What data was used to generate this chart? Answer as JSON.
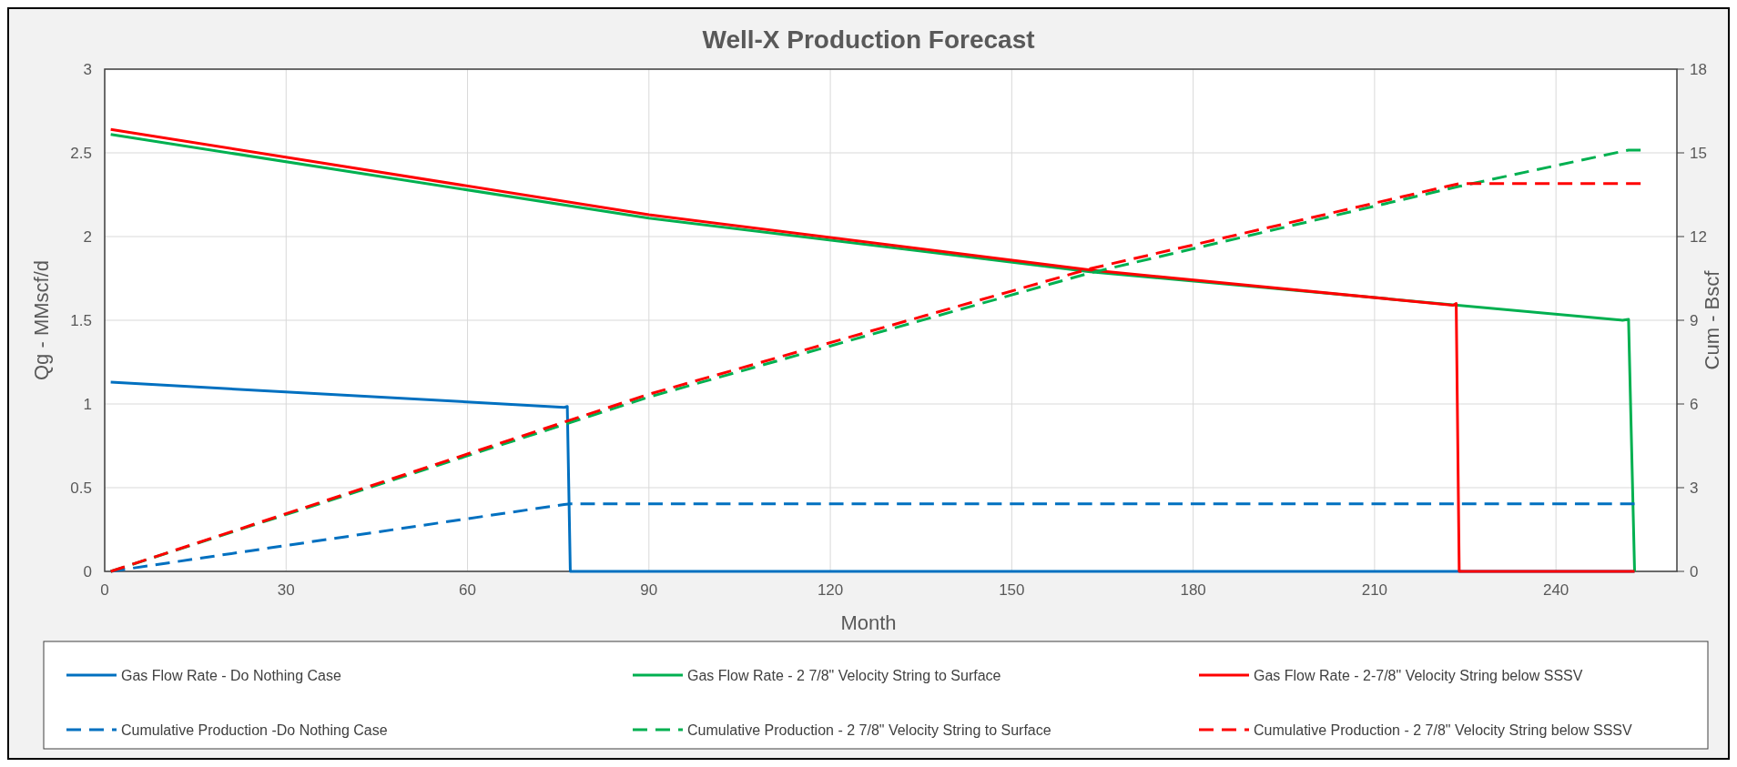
{
  "chart_data": {
    "type": "line",
    "title": "Well-X Production Forecast",
    "xlabel": "Month",
    "ylabel": "Qg - MMscf/d",
    "y2label": "Cum - Bscf",
    "xlim": [
      0,
      260
    ],
    "xticks": [
      0,
      30,
      60,
      90,
      120,
      150,
      180,
      210,
      240
    ],
    "ylim": [
      0,
      3
    ],
    "yticks": [
      0,
      0.5,
      1,
      1.5,
      2,
      2.5,
      3
    ],
    "y2lim": [
      0,
      18
    ],
    "y2ticks": [
      0,
      3,
      6,
      9,
      12,
      15,
      18
    ],
    "grid": true,
    "legend": "bottom",
    "marker": "none",
    "series": [
      {
        "name": "Gas Flow Rate - Do Nothing Case",
        "color": "#0070c0",
        "line_style": "solid",
        "x": [
          1,
          76,
          76.5,
          77,
          253
        ],
        "values": [
          1.13,
          0.98,
          0.985,
          0,
          0
        ]
      },
      {
        "name": "Gas Flow Rate - 2 7/8\" Velocity String to Surface",
        "color": "#00b050",
        "line_style": "solid",
        "x": [
          1,
          90,
          163,
          251,
          252,
          253
        ],
        "values": [
          2.61,
          2.11,
          1.79,
          1.5,
          1.505,
          0
        ]
      },
      {
        "name": "Gas Flow Rate - 2-7/8\" Velocity String below SSSV",
        "color": "#ff0000",
        "line_style": "solid",
        "x": [
          1,
          90,
          163,
          223,
          223.5,
          224,
          253
        ],
        "values": [
          2.64,
          2.13,
          1.8,
          1.59,
          1.6,
          0,
          0
        ]
      },
      {
        "name": "Cumulative Production -Do Nothing Case",
        "color": "#0070c0",
        "line_style": "dashed",
        "axis": "y2",
        "x": [
          1,
          76,
          77,
          253
        ],
        "values": [
          0,
          2.4,
          2.42,
          2.42
        ]
      },
      {
        "name": "Cumulative Production - 2 7/8\" Velocity String to Surface",
        "color": "#00b050",
        "line_style": "dashed",
        "axis": "y2",
        "x": [
          1,
          90,
          163,
          224,
          252,
          254
        ],
        "values": [
          0,
          6.25,
          10.7,
          13.8,
          15.1,
          15.1
        ]
      },
      {
        "name": "Cumulative Production - 2 7/8\" Velocity String below SSSV",
        "color": "#ff0000",
        "line_style": "dashed",
        "axis": "y2",
        "x": [
          1,
          90,
          163,
          224,
          254
        ],
        "values": [
          0,
          6.35,
          10.85,
          13.9,
          13.9
        ]
      }
    ]
  }
}
